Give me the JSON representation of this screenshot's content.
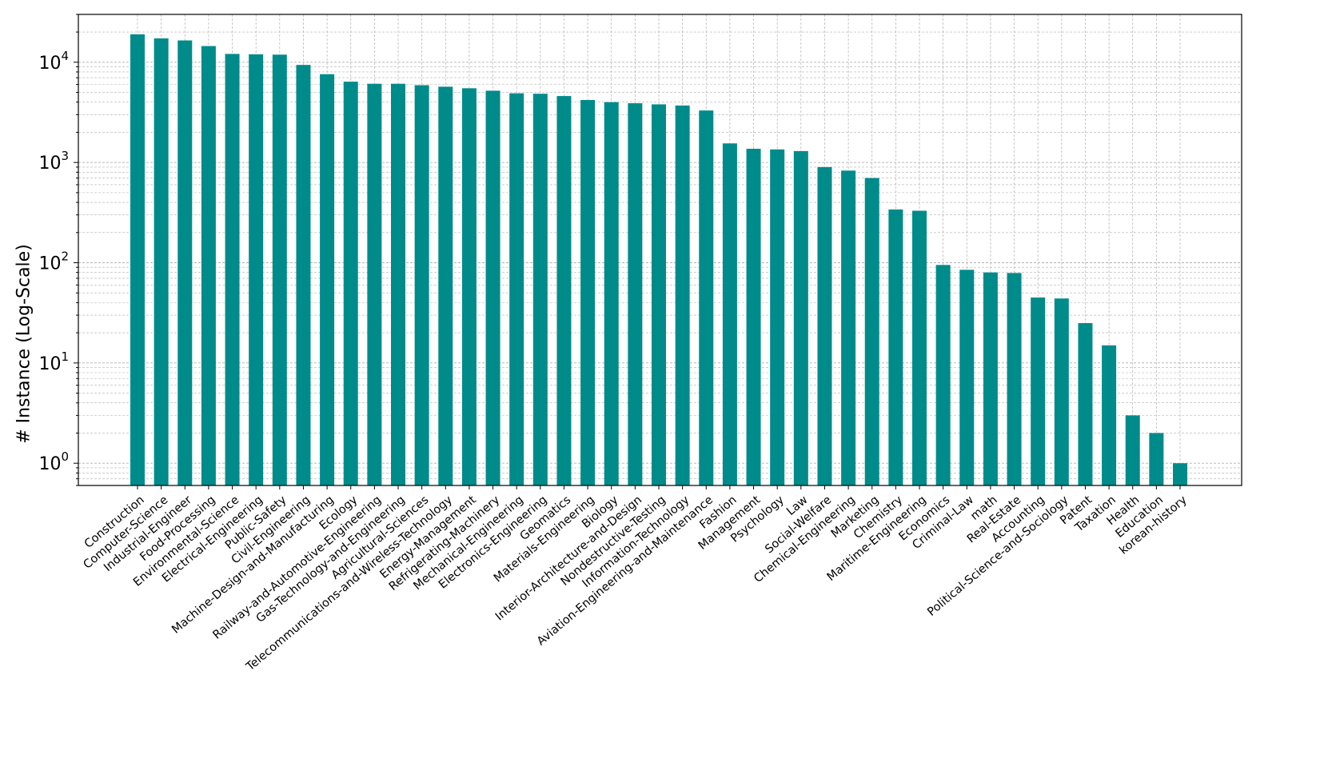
{
  "chart_data": {
    "type": "bar",
    "title": "",
    "xlabel": "",
    "ylabel": "# Instance (Log-Scale)",
    "yscale": "log",
    "ylim": [
      0.6,
      30000
    ],
    "grid": true,
    "color": "#008b8b",
    "ytick_labels": [
      {
        "value": 1,
        "base": "10",
        "exp": "0"
      },
      {
        "value": 10,
        "base": "10",
        "exp": "1"
      },
      {
        "value": 100,
        "base": "10",
        "exp": "2"
      },
      {
        "value": 1000,
        "base": "10",
        "exp": "3"
      },
      {
        "value": 10000,
        "base": "10",
        "exp": "4"
      }
    ],
    "categories": [
      "Construction",
      "Computer-Science",
      "Industrial-Engineer",
      "Food-Processing",
      "Environmental-Science",
      "Electrical-Engineering",
      "Public-Safety",
      "Civil-Engineering",
      "Machine-Design-and-Manufacturing",
      "Ecology",
      "Railway-and-Automotive-Engineering",
      "Gas-Technology-and-Engineering",
      "Agricultural-Sciences",
      "Telecommunications-and-Wireless-Technology",
      "Energy-Management",
      "Refrigerating-Machinery",
      "Mechanical-Engineering",
      "Electronics-Engineering",
      "Geomatics",
      "Materials-Engineering",
      "Biology",
      "Interior-Architecture-and-Design",
      "Nondestructive-Testing",
      "Information-Technology",
      "Aviation-Engineering-and-Maintenance",
      "Fashion",
      "Management",
      "Psychology",
      "Law",
      "Social-Welfare",
      "Chemical-Engineering",
      "Marketing",
      "Chemistry",
      "Maritime-Engineering",
      "Economics",
      "Criminal-Law",
      "math",
      "Real-Estate",
      "Accounting",
      "Political-Science-and-Sociology",
      "Patent",
      "Taxation",
      "Health",
      "Education",
      "korean-history"
    ],
    "values": [
      19000,
      17300,
      16500,
      14500,
      12100,
      12000,
      11900,
      9400,
      7600,
      6400,
      6100,
      6100,
      5900,
      5700,
      5500,
      5200,
      4900,
      4850,
      4600,
      4200,
      4000,
      3900,
      3800,
      3700,
      3300,
      1550,
      1370,
      1350,
      1300,
      900,
      830,
      700,
      340,
      330,
      95,
      85,
      80,
      79,
      45,
      44,
      25,
      15,
      3,
      2,
      1
    ]
  }
}
